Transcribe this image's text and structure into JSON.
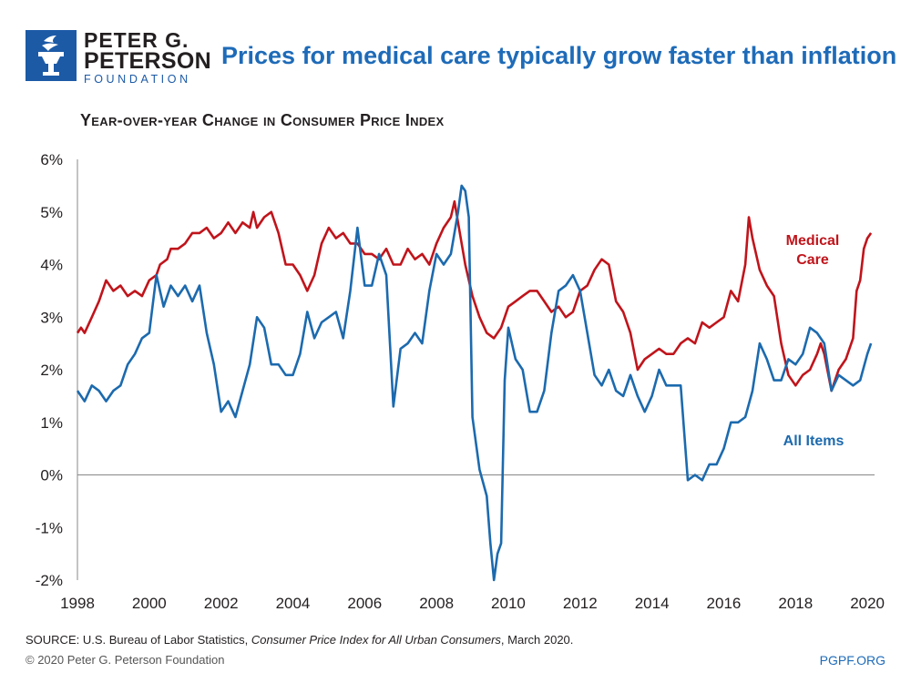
{
  "brand": {
    "line1": "PETER G.",
    "line2": "PETERSON",
    "line3": "FOUNDATION",
    "logo_icon": "torch-icon",
    "color": "#1c5aa6"
  },
  "headline": "Prices for medical care typically grow faster than inflation",
  "footer": {
    "source_prefix": "SOURCE: U.S. Bureau of Labor Statistics, ",
    "source_title": "Consumer Price Index for All Urban Consumers",
    "source_suffix": ", March 2020.",
    "copyright": "© 2020 Peter G. Peterson Foundation",
    "site": "PGPF.ORG"
  },
  "chart_data": {
    "type": "line",
    "title": "Year-over-year Change in Consumer Price Index",
    "xlabel": "",
    "ylabel": "",
    "xlim": [
      1998,
      2020.2
    ],
    "ylim": [
      -2,
      6
    ],
    "grid": false,
    "x_ticks": [
      "1998",
      "2000",
      "2002",
      "2004",
      "2006",
      "2008",
      "2010",
      "2012",
      "2014",
      "2016",
      "2018",
      "2020"
    ],
    "y_ticks": [
      "6%",
      "5%",
      "4%",
      "3%",
      "2%",
      "1%",
      "0%",
      "-1%",
      "-2%"
    ],
    "legend": "inline labels",
    "series": [
      {
        "name": "Medical Care",
        "color": "#c0141b",
        "label_lines": [
          "Medical",
          "Care"
        ],
        "points": [
          [
            1998.0,
            2.7
          ],
          [
            1998.1,
            2.8
          ],
          [
            1998.2,
            2.7
          ],
          [
            1998.4,
            3.0
          ],
          [
            1998.6,
            3.3
          ],
          [
            1998.8,
            3.7
          ],
          [
            1999.0,
            3.5
          ],
          [
            1999.2,
            3.6
          ],
          [
            1999.4,
            3.4
          ],
          [
            1999.6,
            3.5
          ],
          [
            1999.8,
            3.4
          ],
          [
            2000.0,
            3.7
          ],
          [
            2000.2,
            3.8
          ],
          [
            2000.3,
            4.0
          ],
          [
            2000.5,
            4.1
          ],
          [
            2000.6,
            4.3
          ],
          [
            2000.8,
            4.3
          ],
          [
            2001.0,
            4.4
          ],
          [
            2001.2,
            4.6
          ],
          [
            2001.4,
            4.6
          ],
          [
            2001.6,
            4.7
          ],
          [
            2001.8,
            4.5
          ],
          [
            2002.0,
            4.6
          ],
          [
            2002.2,
            4.8
          ],
          [
            2002.4,
            4.6
          ],
          [
            2002.5,
            4.7
          ],
          [
            2002.6,
            4.8
          ],
          [
            2002.8,
            4.7
          ],
          [
            2002.9,
            5.0
          ],
          [
            2003.0,
            4.7
          ],
          [
            2003.2,
            4.9
          ],
          [
            2003.4,
            5.0
          ],
          [
            2003.6,
            4.6
          ],
          [
            2003.8,
            4.0
          ],
          [
            2004.0,
            4.0
          ],
          [
            2004.2,
            3.8
          ],
          [
            2004.4,
            3.5
          ],
          [
            2004.6,
            3.8
          ],
          [
            2004.8,
            4.4
          ],
          [
            2005.0,
            4.7
          ],
          [
            2005.2,
            4.5
          ],
          [
            2005.4,
            4.6
          ],
          [
            2005.6,
            4.4
          ],
          [
            2005.8,
            4.4
          ],
          [
            2006.0,
            4.2
          ],
          [
            2006.2,
            4.2
          ],
          [
            2006.4,
            4.1
          ],
          [
            2006.6,
            4.3
          ],
          [
            2006.8,
            4.0
          ],
          [
            2007.0,
            4.0
          ],
          [
            2007.2,
            4.3
          ],
          [
            2007.4,
            4.1
          ],
          [
            2007.6,
            4.2
          ],
          [
            2007.8,
            4.0
          ],
          [
            2008.0,
            4.4
          ],
          [
            2008.2,
            4.7
          ],
          [
            2008.4,
            4.9
          ],
          [
            2008.5,
            5.2
          ],
          [
            2008.6,
            4.8
          ],
          [
            2008.8,
            4.0
          ],
          [
            2009.0,
            3.4
          ],
          [
            2009.2,
            3.0
          ],
          [
            2009.4,
            2.7
          ],
          [
            2009.6,
            2.6
          ],
          [
            2009.8,
            2.8
          ],
          [
            2010.0,
            3.2
          ],
          [
            2010.2,
            3.3
          ],
          [
            2010.4,
            3.4
          ],
          [
            2010.6,
            3.5
          ],
          [
            2010.8,
            3.5
          ],
          [
            2011.0,
            3.3
          ],
          [
            2011.2,
            3.1
          ],
          [
            2011.4,
            3.2
          ],
          [
            2011.6,
            3.0
          ],
          [
            2011.8,
            3.1
          ],
          [
            2012.0,
            3.5
          ],
          [
            2012.2,
            3.6
          ],
          [
            2012.4,
            3.9
          ],
          [
            2012.6,
            4.1
          ],
          [
            2012.8,
            4.0
          ],
          [
            2013.0,
            3.3
          ],
          [
            2013.2,
            3.1
          ],
          [
            2013.4,
            2.7
          ],
          [
            2013.6,
            2.0
          ],
          [
            2013.8,
            2.2
          ],
          [
            2014.0,
            2.3
          ],
          [
            2014.2,
            2.4
          ],
          [
            2014.4,
            2.3
          ],
          [
            2014.6,
            2.3
          ],
          [
            2014.8,
            2.5
          ],
          [
            2015.0,
            2.6
          ],
          [
            2015.2,
            2.5
          ],
          [
            2015.4,
            2.9
          ],
          [
            2015.6,
            2.8
          ],
          [
            2015.8,
            2.9
          ],
          [
            2016.0,
            3.0
          ],
          [
            2016.2,
            3.5
          ],
          [
            2016.4,
            3.3
          ],
          [
            2016.6,
            4.0
          ],
          [
            2016.7,
            4.9
          ],
          [
            2016.8,
            4.5
          ],
          [
            2017.0,
            3.9
          ],
          [
            2017.2,
            3.6
          ],
          [
            2017.4,
            3.4
          ],
          [
            2017.6,
            2.5
          ],
          [
            2017.8,
            1.9
          ],
          [
            2018.0,
            1.7
          ],
          [
            2018.2,
            1.9
          ],
          [
            2018.4,
            2.0
          ],
          [
            2018.6,
            2.3
          ],
          [
            2018.7,
            2.5
          ],
          [
            2018.8,
            2.3
          ],
          [
            2019.0,
            1.6
          ],
          [
            2019.2,
            2.0
          ],
          [
            2019.4,
            2.2
          ],
          [
            2019.6,
            2.6
          ],
          [
            2019.7,
            3.5
          ],
          [
            2019.8,
            3.7
          ],
          [
            2019.9,
            4.3
          ],
          [
            2020.0,
            4.5
          ],
          [
            2020.1,
            4.6
          ]
        ]
      },
      {
        "name": "All Items",
        "color": "#1c6aae",
        "label_lines": [
          "All Items"
        ],
        "points": [
          [
            1998.0,
            1.6
          ],
          [
            1998.2,
            1.4
          ],
          [
            1998.4,
            1.7
          ],
          [
            1998.6,
            1.6
          ],
          [
            1998.8,
            1.4
          ],
          [
            1999.0,
            1.6
          ],
          [
            1999.2,
            1.7
          ],
          [
            1999.4,
            2.1
          ],
          [
            1999.6,
            2.3
          ],
          [
            1999.8,
            2.6
          ],
          [
            2000.0,
            2.7
          ],
          [
            2000.2,
            3.8
          ],
          [
            2000.4,
            3.2
          ],
          [
            2000.6,
            3.6
          ],
          [
            2000.8,
            3.4
          ],
          [
            2001.0,
            3.6
          ],
          [
            2001.2,
            3.3
          ],
          [
            2001.4,
            3.6
          ],
          [
            2001.6,
            2.7
          ],
          [
            2001.8,
            2.1
          ],
          [
            2002.0,
            1.2
          ],
          [
            2002.2,
            1.4
          ],
          [
            2002.4,
            1.1
          ],
          [
            2002.6,
            1.6
          ],
          [
            2002.8,
            2.1
          ],
          [
            2003.0,
            3.0
          ],
          [
            2003.2,
            2.8
          ],
          [
            2003.4,
            2.1
          ],
          [
            2003.6,
            2.1
          ],
          [
            2003.8,
            1.9
          ],
          [
            2004.0,
            1.9
          ],
          [
            2004.2,
            2.3
          ],
          [
            2004.4,
            3.1
          ],
          [
            2004.6,
            2.6
          ],
          [
            2004.8,
            2.9
          ],
          [
            2005.0,
            3.0
          ],
          [
            2005.2,
            3.1
          ],
          [
            2005.4,
            2.6
          ],
          [
            2005.6,
            3.5
          ],
          [
            2005.8,
            4.7
          ],
          [
            2006.0,
            3.6
          ],
          [
            2006.2,
            3.6
          ],
          [
            2006.4,
            4.2
          ],
          [
            2006.6,
            3.8
          ],
          [
            2006.8,
            1.3
          ],
          [
            2007.0,
            2.4
          ],
          [
            2007.2,
            2.5
          ],
          [
            2007.4,
            2.7
          ],
          [
            2007.6,
            2.5
          ],
          [
            2007.8,
            3.5
          ],
          [
            2008.0,
            4.2
          ],
          [
            2008.2,
            4.0
          ],
          [
            2008.4,
            4.2
          ],
          [
            2008.6,
            5.0
          ],
          [
            2008.7,
            5.5
          ],
          [
            2008.8,
            5.4
          ],
          [
            2008.9,
            4.9
          ],
          [
            2009.0,
            1.1
          ],
          [
            2009.2,
            0.1
          ],
          [
            2009.4,
            -0.4
          ],
          [
            2009.5,
            -1.3
          ],
          [
            2009.6,
            -2.0
          ],
          [
            2009.7,
            -1.5
          ],
          [
            2009.8,
            -1.3
          ],
          [
            2009.9,
            1.8
          ],
          [
            2010.0,
            2.8
          ],
          [
            2010.2,
            2.2
          ],
          [
            2010.4,
            2.0
          ],
          [
            2010.6,
            1.2
          ],
          [
            2010.8,
            1.2
          ],
          [
            2011.0,
            1.6
          ],
          [
            2011.2,
            2.7
          ],
          [
            2011.4,
            3.5
          ],
          [
            2011.6,
            3.6
          ],
          [
            2011.8,
            3.8
          ],
          [
            2012.0,
            3.5
          ],
          [
            2012.2,
            2.7
          ],
          [
            2012.4,
            1.9
          ],
          [
            2012.6,
            1.7
          ],
          [
            2012.8,
            2.0
          ],
          [
            2013.0,
            1.6
          ],
          [
            2013.2,
            1.5
          ],
          [
            2013.4,
            1.9
          ],
          [
            2013.6,
            1.5
          ],
          [
            2013.8,
            1.2
          ],
          [
            2014.0,
            1.5
          ],
          [
            2014.2,
            2.0
          ],
          [
            2014.4,
            1.7
          ],
          [
            2014.6,
            1.7
          ],
          [
            2014.8,
            1.7
          ],
          [
            2015.0,
            -0.1
          ],
          [
            2015.2,
            0.0
          ],
          [
            2015.4,
            -0.1
          ],
          [
            2015.6,
            0.2
          ],
          [
            2015.8,
            0.2
          ],
          [
            2016.0,
            0.5
          ],
          [
            2016.2,
            1.0
          ],
          [
            2016.4,
            1.0
          ],
          [
            2016.6,
            1.1
          ],
          [
            2016.8,
            1.6
          ],
          [
            2017.0,
            2.5
          ],
          [
            2017.2,
            2.2
          ],
          [
            2017.4,
            1.8
          ],
          [
            2017.6,
            1.8
          ],
          [
            2017.8,
            2.2
          ],
          [
            2018.0,
            2.1
          ],
          [
            2018.2,
            2.3
          ],
          [
            2018.4,
            2.8
          ],
          [
            2018.6,
            2.7
          ],
          [
            2018.8,
            2.5
          ],
          [
            2019.0,
            1.6
          ],
          [
            2019.2,
            1.9
          ],
          [
            2019.4,
            1.8
          ],
          [
            2019.6,
            1.7
          ],
          [
            2019.8,
            1.8
          ],
          [
            2020.0,
            2.3
          ],
          [
            2020.1,
            2.5
          ]
        ]
      }
    ]
  }
}
